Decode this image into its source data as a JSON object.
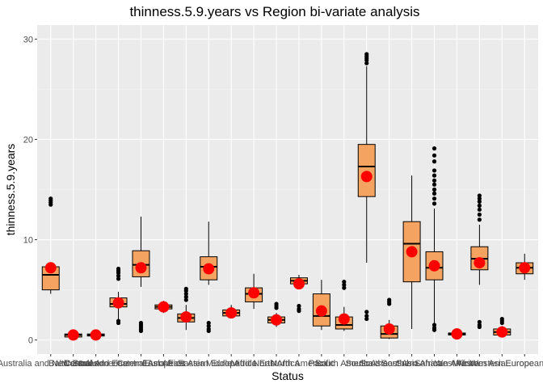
{
  "colors": {
    "panel": "#ebebeb",
    "grid_major": "#ffffff",
    "grid_minor": "#f5f5f5",
    "box_fill": "#f4a460",
    "box_stroke": "#000000",
    "mean_point": "#ff0000",
    "outlier": "#000000"
  },
  "chart_data": {
    "type": "boxplot",
    "title": "thinness.5.9.years vs Region bi-variate analysis",
    "xlabel": "Status",
    "ylabel": "thinness.5.9.years",
    "ylim": [
      0,
      30
    ],
    "yticks": [
      0,
      10,
      20,
      30
    ],
    "grid": true,
    "legend": "none",
    "categories": [
      "Australia and New Zealand",
      "Baltic States",
      "Central America",
      "Central and Eastern Europe",
      "Central Asia",
      "East Africa",
      "East Asia",
      "Eastern Europe",
      "Middle Africa",
      "Middle East",
      "North Africa",
      "North America",
      "Pacific",
      "South America",
      "South Asia",
      "Southeast Asia",
      "Southern Africa",
      "Sub-Saharan Africa",
      "West Africa",
      "Western Asia",
      "Western Europe",
      "European"
    ],
    "boxes": [
      {
        "q1": 5.0,
        "median": 6.5,
        "q3": 7.3,
        "whisker_low": 4.6,
        "whisker_high": 7.3,
        "mean": 7.2,
        "outliers": [
          13.5,
          13.7,
          13.9,
          14.1
        ]
      },
      {
        "q1": 0.3,
        "median": 0.5,
        "q3": 0.6,
        "whisker_low": 0.3,
        "whisker_high": 0.6,
        "mean": 0.5,
        "outliers": []
      },
      {
        "q1": 0.4,
        "median": 0.5,
        "q3": 0.6,
        "whisker_low": 0.4,
        "whisker_high": 0.6,
        "mean": 0.5,
        "outliers": []
      },
      {
        "q1": 3.3,
        "median": 3.6,
        "q3": 4.2,
        "whisker_low": 2.0,
        "whisker_high": 4.8,
        "mean": 3.7,
        "outliers": [
          1.7,
          1.9,
          6.1,
          6.4,
          6.7,
          6.9,
          7.1
        ]
      },
      {
        "q1": 6.3,
        "median": 7.5,
        "q3": 8.9,
        "whisker_low": 5.3,
        "whisker_high": 12.3,
        "mean": 7.2,
        "outliers": [
          0.9,
          1.1,
          1.3,
          1.5,
          1.7
        ]
      },
      {
        "q1": 3.1,
        "median": 3.3,
        "q3": 3.5,
        "whisker_low": 2.7,
        "whisker_high": 3.9,
        "mean": 3.3,
        "outliers": []
      },
      {
        "q1": 1.8,
        "median": 2.2,
        "q3": 2.6,
        "whisker_low": 1.0,
        "whisker_high": 3.5,
        "mean": 2.3,
        "outliers": [
          4.0,
          4.3,
          4.6,
          4.9,
          5.1
        ]
      },
      {
        "q1": 6.0,
        "median": 7.3,
        "q3": 8.3,
        "whisker_low": 5.5,
        "whisker_high": 11.8,
        "mean": 7.1,
        "outliers": [
          0.9,
          1.1,
          1.4,
          1.7
        ]
      },
      {
        "q1": 2.4,
        "median": 2.7,
        "q3": 3.0,
        "whisker_low": 2.3,
        "whisker_high": 3.5,
        "mean": 2.7,
        "outliers": []
      },
      {
        "q1": 3.8,
        "median": 4.6,
        "q3": 5.2,
        "whisker_low": 3.1,
        "whisker_high": 6.6,
        "mean": 4.7,
        "outliers": []
      },
      {
        "q1": 1.7,
        "median": 2.0,
        "q3": 2.3,
        "whisker_low": 1.3,
        "whisker_high": 2.7,
        "mean": 2.0,
        "outliers": [
          3.2,
          3.4,
          3.6
        ]
      },
      {
        "q1": 5.6,
        "median": 5.9,
        "q3": 6.2,
        "whisker_low": 5.4,
        "whisker_high": 6.5,
        "mean": 5.6,
        "outliers": [
          2.9,
          3.1,
          3.4
        ]
      },
      {
        "q1": 1.4,
        "median": 2.4,
        "q3": 4.6,
        "whisker_low": 1.0,
        "whisker_high": 6.0,
        "mean": 2.9,
        "outliers": []
      },
      {
        "q1": 1.1,
        "median": 1.5,
        "q3": 2.3,
        "whisker_low": 0.9,
        "whisker_high": 3.3,
        "mean": 2.1,
        "outliers": [
          5.2,
          5.5,
          5.8
        ]
      },
      {
        "q1": 14.3,
        "median": 17.3,
        "q3": 19.5,
        "whisker_low": 7.7,
        "whisker_high": 27.3,
        "mean": 16.3,
        "outliers": [
          2.1,
          2.4,
          2.8,
          27.6,
          27.9,
          28.1,
          28.3,
          28.5
        ]
      },
      {
        "q1": 0.2,
        "median": 0.6,
        "q3": 1.4,
        "whisker_low": 0.1,
        "whisker_high": 2.0,
        "mean": 1.1,
        "outliers": [
          3.6,
          3.8,
          4.0
        ]
      },
      {
        "q1": 5.8,
        "median": 9.6,
        "q3": 11.8,
        "whisker_low": 1.1,
        "whisker_high": 16.4,
        "mean": 8.8,
        "outliers": []
      },
      {
        "q1": 6.0,
        "median": 7.2,
        "q3": 8.8,
        "whisker_low": 1.7,
        "whisker_high": 13.1,
        "mean": 7.4,
        "outliers": [
          1.0,
          1.2,
          1.5,
          13.6,
          14.1,
          14.6,
          15.0,
          15.5,
          15.9,
          16.4,
          16.9,
          17.8,
          18.4,
          19.1
        ]
      },
      {
        "q1": 0.5,
        "median": 0.6,
        "q3": 0.7,
        "whisker_low": 0.5,
        "whisker_high": 0.7,
        "mean": 0.6,
        "outliers": []
      },
      {
        "q1": 7.0,
        "median": 8.1,
        "q3": 9.3,
        "whisker_low": 5.5,
        "whisker_high": 11.5,
        "mean": 7.7,
        "outliers": [
          1.3,
          1.5,
          1.8,
          12.0,
          12.5,
          13.0,
          13.4,
          13.8,
          14.1,
          14.4
        ]
      },
      {
        "q1": 0.5,
        "median": 0.8,
        "q3": 1.1,
        "whisker_low": 0.3,
        "whisker_high": 1.4,
        "mean": 0.8,
        "outliers": [
          1.7,
          1.9,
          2.1
        ]
      },
      {
        "q1": 6.6,
        "median": 7.2,
        "q3": 7.7,
        "whisker_low": 6.0,
        "whisker_high": 8.6,
        "mean": 7.2,
        "outliers": []
      }
    ]
  }
}
